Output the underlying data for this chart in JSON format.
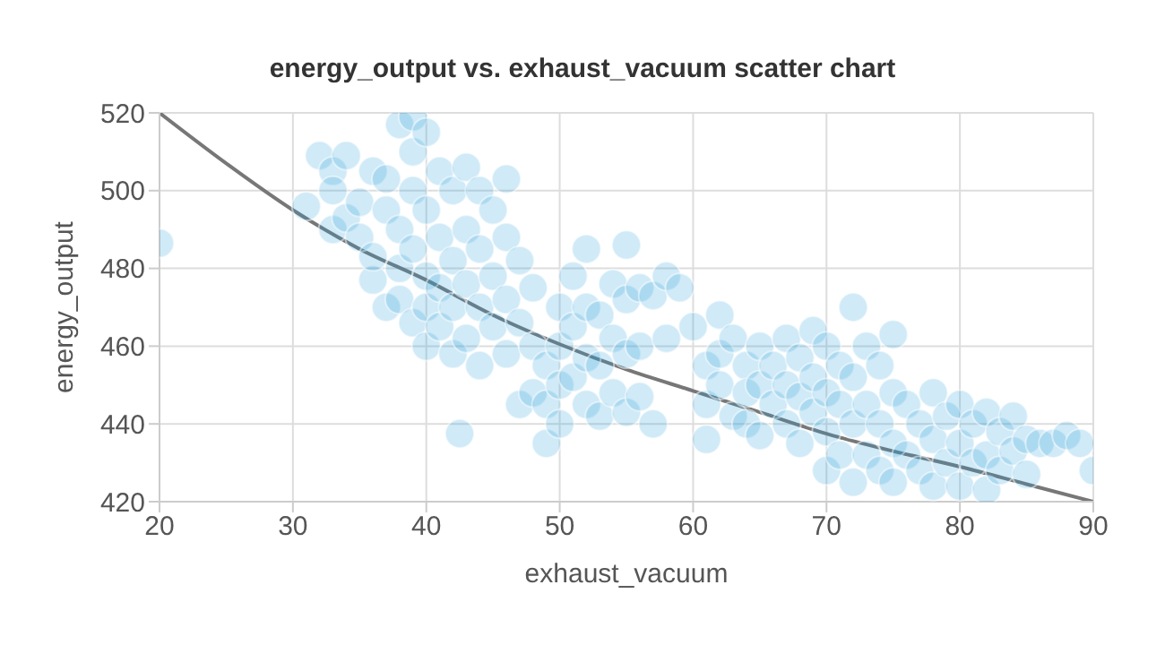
{
  "chart_data": {
    "type": "scatter",
    "title": "energy_output vs. exhaust_vacuum scatter chart",
    "xlabel": "exhaust_vacuum",
    "ylabel": "energy_output",
    "xlim": [
      20,
      90
    ],
    "xticks": [
      20,
      30,
      40,
      50,
      60,
      70,
      80,
      90
    ],
    "ylim": [
      420,
      520
    ],
    "yticks": [
      420,
      440,
      460,
      480,
      500,
      520
    ],
    "grid": true,
    "legend": false,
    "marker": "circle",
    "series": [
      {
        "color": "#2a9fdc",
        "x": [
          20,
          31,
          32,
          33,
          33,
          33,
          34,
          34,
          35,
          35,
          36,
          36,
          36,
          37,
          37,
          37,
          38,
          38,
          38,
          38,
          39,
          39,
          39,
          39,
          39,
          40,
          40,
          40,
          40,
          40,
          41,
          41,
          41,
          41,
          42,
          42,
          42,
          42,
          42.5,
          43,
          43,
          43,
          43,
          44,
          44,
          44,
          44,
          45,
          45,
          45,
          46,
          46,
          46,
          46,
          47,
          47,
          47,
          48,
          48,
          48,
          49,
          49,
          49,
          50,
          50,
          50,
          50,
          51,
          51,
          51,
          52,
          52,
          52,
          52,
          53,
          53,
          53,
          54,
          54,
          54,
          55,
          55,
          55,
          55,
          56,
          56,
          56,
          57,
          57,
          58,
          58,
          59,
          60,
          61,
          61,
          61,
          62,
          62,
          62,
          63,
          63,
          64,
          64,
          64,
          65,
          65,
          65,
          66,
          66,
          67,
          67,
          67,
          68,
          68,
          68,
          69,
          69,
          69,
          70,
          70,
          70,
          70,
          71,
          71,
          71,
          72,
          72,
          72,
          72,
          73,
          73,
          73,
          74,
          74,
          74,
          75,
          75,
          75,
          75,
          76,
          76,
          77,
          77,
          78,
          78,
          78,
          79,
          79,
          80,
          80,
          80,
          81,
          81,
          82,
          82,
          82,
          83,
          83,
          84,
          84,
          85,
          85,
          86,
          87,
          88,
          89,
          90
        ],
        "values": [
          486.5,
          496,
          509,
          505,
          500,
          490,
          509,
          493,
          488,
          497,
          505,
          477,
          483,
          470,
          495,
          503,
          517,
          490,
          480,
          472,
          519,
          510,
          500,
          485,
          466,
          515,
          495,
          478,
          470,
          460,
          505,
          488,
          475,
          465,
          500,
          482,
          470,
          458,
          437.5,
          506,
          490,
          476,
          462,
          500,
          485,
          470,
          455,
          495,
          478,
          465,
          503,
          488,
          472,
          458,
          482,
          466,
          445,
          475,
          460,
          448,
          455,
          445,
          435,
          470,
          460,
          450,
          440,
          478,
          465,
          452,
          485,
          470,
          457,
          445,
          468,
          455,
          442,
          476,
          462,
          448,
          486,
          472,
          458,
          443,
          475,
          460,
          447,
          473,
          440,
          478,
          462,
          475,
          465,
          455,
          445,
          436,
          468,
          458,
          450,
          462,
          442,
          455,
          448,
          440,
          460,
          450,
          437,
          455,
          445,
          462,
          450,
          440,
          457,
          447,
          435,
          464,
          452,
          443,
          460,
          448,
          438,
          428,
          455,
          445,
          432,
          470,
          452,
          440,
          425,
          460,
          445,
          432,
          455,
          440,
          428,
          463,
          448,
          435,
          425,
          445,
          432,
          440,
          428,
          448,
          436,
          424,
          442,
          430,
          445,
          435,
          424,
          440,
          430,
          443,
          432,
          423,
          438,
          428,
          442,
          433,
          436,
          427,
          435,
          435,
          437,
          435,
          428
        ]
      },
      {
        "type": "line",
        "color": "#777777",
        "marker": "none",
        "x": [
          20,
          25,
          30,
          35,
          40,
          45,
          50,
          55,
          60,
          65,
          70,
          75,
          80,
          85,
          90
        ],
        "values": [
          520,
          507,
          495,
          485,
          477,
          468,
          460.5,
          454,
          448.5,
          443,
          437.5,
          433,
          429,
          424.5,
          420
        ]
      }
    ]
  }
}
